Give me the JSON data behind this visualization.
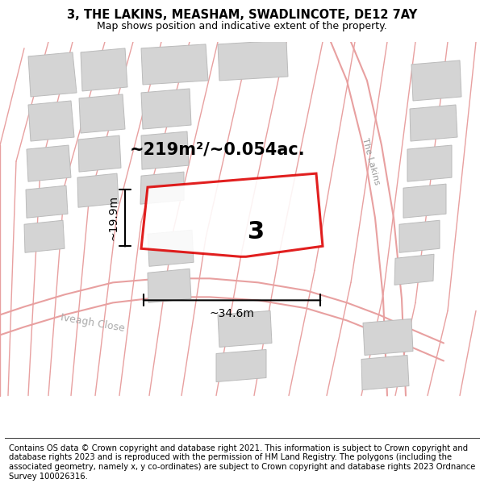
{
  "title": "3, THE LAKINS, MEASHAM, SWADLINCOTE, DE12 7AY",
  "subtitle": "Map shows position and indicative extent of the property.",
  "area_label": "~219m²/~0.054ac.",
  "width_label": "~34.6m",
  "height_label": "~19.9m",
  "plot_number": "3",
  "footer": "Contains OS data © Crown copyright and database right 2021. This information is subject to Crown copyright and database rights 2023 and is reproduced with the permission of HM Land Registry. The polygons (including the associated geometry, namely x, y co-ordinates) are subject to Crown copyright and database rights 2023 Ordnance Survey 100026316.",
  "bg_color": "#eeeeee",
  "building_color": "#d4d4d4",
  "building_edge": "#bbbbbb",
  "road_line_color": "#e8a0a0",
  "plot_color": "#dd0000",
  "title_fontsize": 10.5,
  "subtitle_fontsize": 9,
  "footer_fontsize": 7.2,
  "label_fontsize": 15,
  "dim_fontsize": 10
}
